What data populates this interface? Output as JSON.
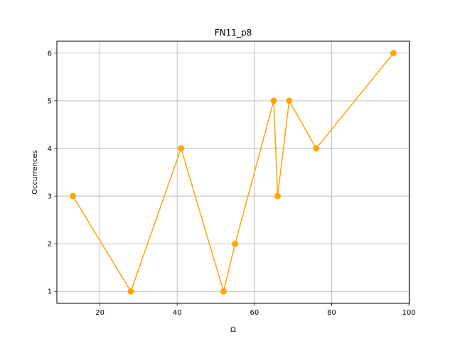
{
  "chart_data": {
    "type": "line",
    "title": "FN11_p8",
    "xlabel": "Ω",
    "ylabel": "Occurrences",
    "xlim": [
      8.85,
      100.15
    ],
    "ylim": [
      0.75,
      6.25
    ],
    "xticks": [
      20,
      40,
      60,
      80,
      100
    ],
    "yticks": [
      1,
      2,
      3,
      4,
      5,
      6
    ],
    "grid": true,
    "series": [
      {
        "name": "FN11_p8",
        "color": "#ffa500",
        "x": [
          13,
          28,
          41,
          52,
          55,
          65,
          66,
          69,
          76,
          96
        ],
        "y": [
          3,
          1,
          4,
          1,
          2,
          5,
          3,
          5,
          4,
          6
        ]
      }
    ]
  }
}
